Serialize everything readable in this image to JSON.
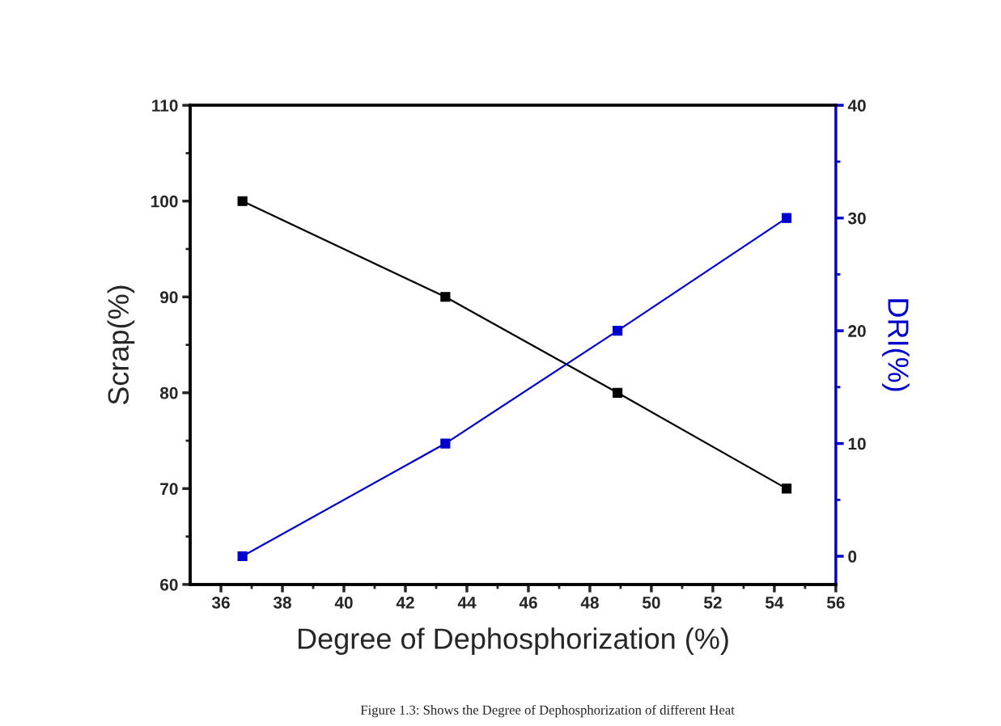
{
  "chart_data": {
    "type": "line",
    "xlabel": "Degree of Dephosphorization (%)",
    "ylabel": "Scrap(%)",
    "y2label": "DRI(%)",
    "x": [
      36.7,
      43.3,
      48.9,
      54.4
    ],
    "series": [
      {
        "color": "#000000",
        "values": [
          100,
          90,
          80,
          70
        ]
      },
      {
        "color": "#0000cc",
        "values": [
          0,
          10,
          20,
          30
        ],
        "axis": "y2"
      }
    ],
    "xlim": [
      35,
      56
    ],
    "xticks": [
      36,
      38,
      40,
      42,
      44,
      46,
      48,
      50,
      52,
      54,
      56
    ],
    "ylim": [
      60,
      110
    ],
    "yticks": [
      60,
      70,
      80,
      90,
      100,
      110
    ],
    "y2lim": [
      -2.5,
      40
    ],
    "y2ticks": [
      0,
      10,
      20,
      30,
      40
    ],
    "marker": "square",
    "line_style": "solid",
    "grid": false,
    "legend": false,
    "annotations": [
      "Figure 1.3: Shows the Degree of Dephosphorization of different Heat"
    ]
  }
}
